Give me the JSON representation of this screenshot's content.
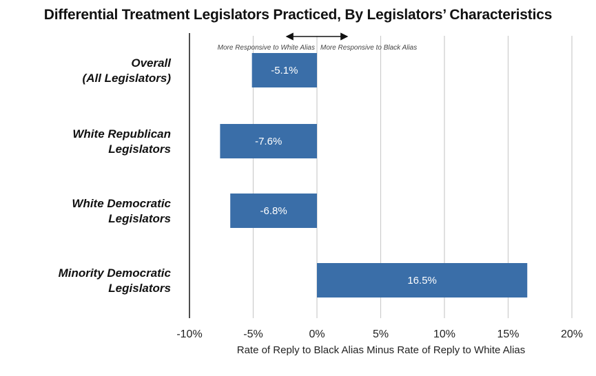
{
  "chart_data": {
    "type": "bar",
    "orientation": "horizontal",
    "title": "Differential Treatment Legislators Practiced, By Legislators’ Characteristics",
    "categories": [
      [
        "Overall",
        "(All Legislators)"
      ],
      [
        "White Republican",
        "Legislators"
      ],
      [
        "White Democratic",
        "Legislators"
      ],
      [
        "Minority Democratic",
        "Legislators"
      ]
    ],
    "values": [
      -5.1,
      -7.6,
      -6.8,
      16.5
    ],
    "data_labels": [
      "-5.1%",
      "-7.6%",
      "-6.8%",
      "16.5%"
    ],
    "xlim": [
      -10,
      20
    ],
    "xticks": [
      -10,
      -5,
      0,
      5,
      10,
      15,
      20
    ],
    "xtick_labels": [
      "-10%",
      "-5%",
      "0%",
      "5%",
      "10%",
      "15%",
      "20%"
    ],
    "xlabel": "Rate of Reply to Black Alias Minus Rate of Reply to White Alias",
    "ylabel": "",
    "annotations": {
      "left": "More Responsive to White Alias",
      "right": "More Responsive to Black Alias"
    },
    "grid": "vertical",
    "bar_color": "#3a6ea8"
  }
}
